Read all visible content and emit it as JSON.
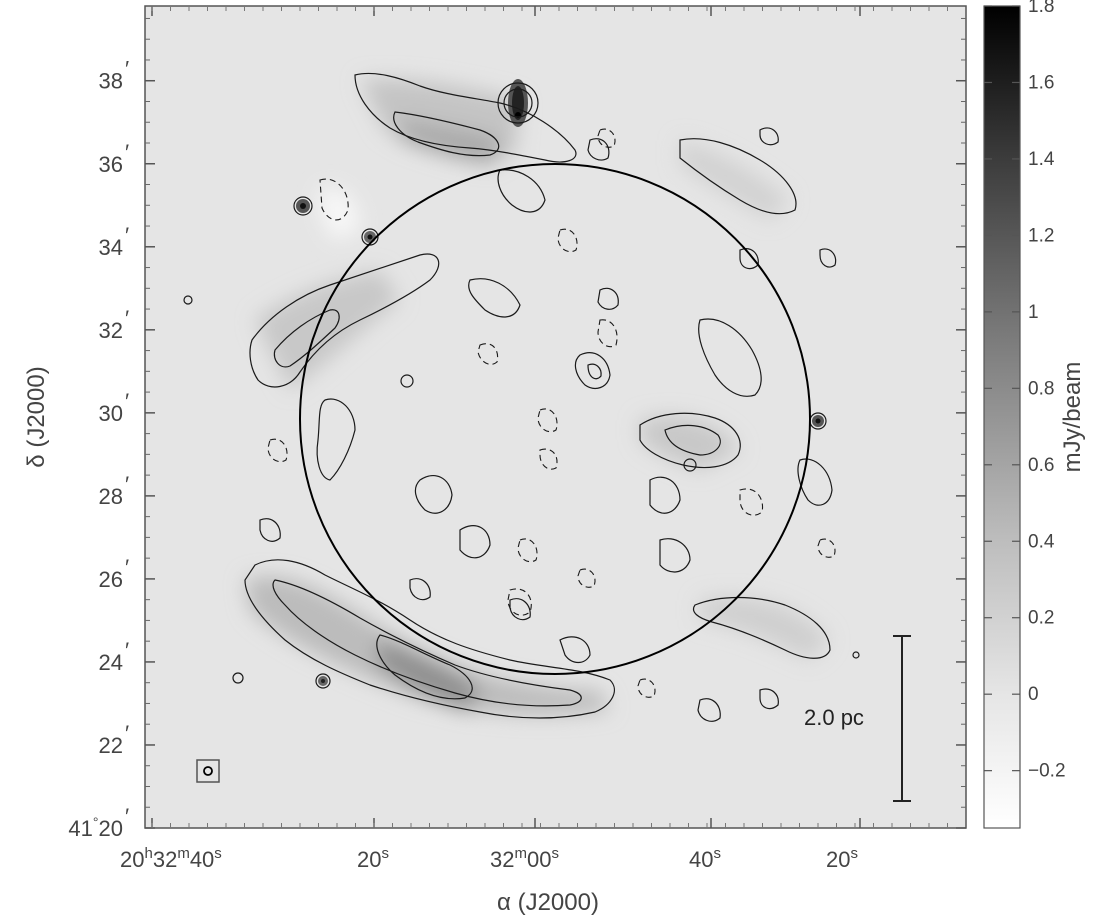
{
  "chart_data": {
    "type": "heatmap",
    "title": "",
    "xlabel": "α (J2000)",
    "ylabel": "δ (J2000)",
    "x_ticks": [
      {
        "h": "20",
        "m": "32",
        "s": "40",
        "full": true
      },
      {
        "s": "20"
      },
      {
        "m": "32",
        "s": "00",
        "full_m": true
      },
      {
        "s": "40"
      },
      {
        "s": "20"
      }
    ],
    "y_ticks": [
      {
        "value": 20,
        "deg": "41",
        "label": "20"
      },
      {
        "value": 22,
        "label": "22"
      },
      {
        "value": 24,
        "label": "24"
      },
      {
        "value": 26,
        "label": "26"
      },
      {
        "value": 28,
        "label": "28"
      },
      {
        "value": 30,
        "label": "30"
      },
      {
        "value": 32,
        "label": "32"
      },
      {
        "value": 34,
        "label": "34"
      },
      {
        "value": 36,
        "label": "36"
      },
      {
        "value": 38,
        "label": "38"
      }
    ],
    "ylim_arcmin": [
      20,
      39.8
    ],
    "colorbar": {
      "label": "mJy/beam",
      "range": [
        -0.35,
        1.8
      ],
      "ticks": [
        -0.2,
        0,
        0.2,
        0.4,
        0.6,
        0.8,
        1,
        1.2,
        1.4,
        1.6,
        1.8
      ],
      "tick_labels": [
        "−0.2",
        "0",
        "0.2",
        "0.4",
        "0.6",
        "0.8",
        "1",
        "1.2",
        "1.4",
        "1.6",
        "1.8"
      ]
    },
    "scale_bar": {
      "label": "2.0 pc"
    },
    "annotations": [
      "circle outlining shell",
      "beam symbol lower-left",
      "contours"
    ],
    "grid": false,
    "colormap": "grayscale"
  }
}
